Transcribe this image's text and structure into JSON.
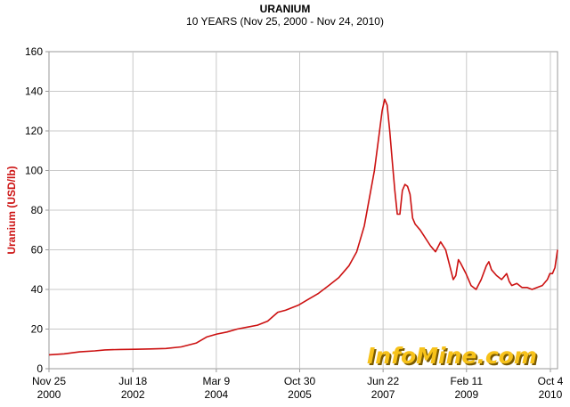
{
  "chart_data": {
    "type": "line",
    "title": "URANIUM",
    "subtitle": "10 YEARS (Nov 25, 2000 - Nov 24, 2010)",
    "ylabel": "Uranium (USD/lb)",
    "xlabel": "",
    "ylim": [
      0,
      160
    ],
    "yticks": [
      0,
      20,
      40,
      60,
      80,
      100,
      120,
      140,
      160
    ],
    "xlim": [
      2000.9,
      2010.9
    ],
    "xticks": [
      {
        "x": 2000.9,
        "line1": "Nov 25",
        "line2": "2000"
      },
      {
        "x": 2002.55,
        "line1": "Jul 18",
        "line2": "2002"
      },
      {
        "x": 2004.19,
        "line1": "Mar 9",
        "line2": "2004"
      },
      {
        "x": 2005.83,
        "line1": "Oct 30",
        "line2": "2005"
      },
      {
        "x": 2007.47,
        "line1": "Jun 22",
        "line2": "2007"
      },
      {
        "x": 2009.11,
        "line1": "Feb 11",
        "line2": "2009"
      },
      {
        "x": 2010.76,
        "line1": "Oct 4",
        "line2": "2010"
      }
    ],
    "grid": true,
    "line_color": "#cc1111",
    "watermark": "InfoMine.com",
    "series": [
      {
        "x": [
          2000.9,
          2001.2,
          2001.5,
          2001.8,
          2002.0,
          2002.3,
          2002.6,
          2002.9,
          2003.2,
          2003.5,
          2003.8,
          2004.0,
          2004.2,
          2004.4,
          2004.6,
          2004.8,
          2005.0,
          2005.2,
          2005.4,
          2005.55,
          2005.6,
          2005.8,
          2006.0,
          2006.2,
          2006.4,
          2006.6,
          2006.8,
          2006.95,
          2007.1,
          2007.2,
          2007.3,
          2007.4,
          2007.45,
          2007.5,
          2007.55,
          2007.6,
          2007.65,
          2007.7,
          2007.75,
          2007.8,
          2007.85,
          2007.9,
          2007.95,
          2008.0,
          2008.05,
          2008.1,
          2008.2,
          2008.3,
          2008.4,
          2008.5,
          2008.6,
          2008.7,
          2008.8,
          2008.85,
          2008.9,
          2008.95,
          2009.0,
          2009.1,
          2009.2,
          2009.3,
          2009.4,
          2009.5,
          2009.55,
          2009.6,
          2009.7,
          2009.8,
          2009.9,
          2009.95,
          2010.0,
          2010.1,
          2010.2,
          2010.3,
          2010.4,
          2010.5,
          2010.6,
          2010.7,
          2010.75,
          2010.8,
          2010.85,
          2010.9
        ],
        "y": [
          7,
          7.5,
          8.5,
          9,
          9.5,
          9.7,
          9.8,
          10,
          10.2,
          11,
          13,
          16,
          17.5,
          18.5,
          20,
          21,
          22,
          24,
          28.5,
          29.5,
          30,
          32,
          35,
          38,
          42,
          46,
          52,
          59,
          72,
          86,
          100,
          120,
          130,
          136,
          133,
          120,
          105,
          90,
          78,
          78,
          90,
          93,
          92,
          88,
          76,
          73,
          70,
          66,
          62,
          59,
          64,
          60,
          50,
          45,
          47,
          55,
          53,
          48,
          42,
          40,
          45,
          52,
          54,
          50,
          47,
          45,
          48,
          44,
          42,
          43,
          41,
          41,
          40,
          41,
          42,
          45,
          48,
          48,
          51,
          60
        ]
      }
    ]
  }
}
